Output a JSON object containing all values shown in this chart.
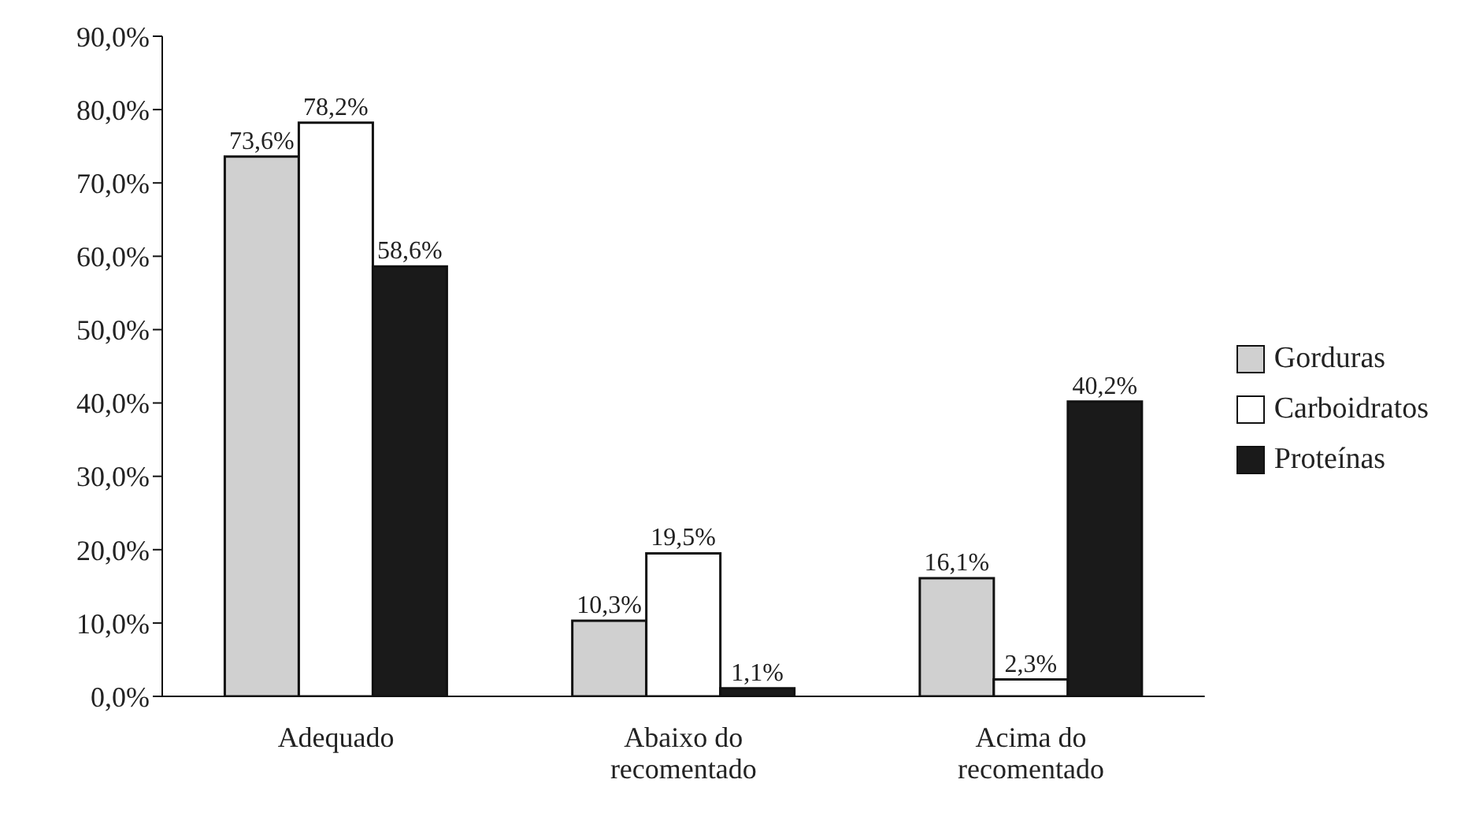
{
  "chart_data": {
    "type": "bar",
    "categories": [
      "Adequado",
      "Abaixo do recomentado",
      "Acima do recomentado"
    ],
    "series": [
      {
        "name": "Gorduras",
        "color": "#d0d0d0",
        "values": [
          73.6,
          10.3,
          16.1
        ],
        "value_labels": [
          "73,6%",
          "10,3%",
          "16,1%"
        ]
      },
      {
        "name": "Carboidratos",
        "color": "#ffffff",
        "values": [
          78.2,
          19.5,
          2.3
        ],
        "value_labels": [
          "78,2%",
          "19,5%",
          "2,3%"
        ]
      },
      {
        "name": "Proteínas",
        "color": "#1a1a1a",
        "values": [
          58.6,
          1.1,
          40.2
        ],
        "value_labels": [
          "58,6%",
          "1,1%",
          "40,2%"
        ]
      }
    ],
    "ylim": [
      0,
      90
    ],
    "yticks": [
      {
        "value": 0,
        "label": "0,0%"
      },
      {
        "value": 10,
        "label": "10,0%"
      },
      {
        "value": 20,
        "label": "20,0%"
      },
      {
        "value": 30,
        "label": "30,0%"
      },
      {
        "value": 40,
        "label": "40,0%"
      },
      {
        "value": 50,
        "label": "50,0%"
      },
      {
        "value": 60,
        "label": "60,0%"
      },
      {
        "value": 70,
        "label": "70,0%"
      },
      {
        "value": 80,
        "label": "80,0%"
      },
      {
        "value": 90,
        "label": "90,0%"
      }
    ],
    "grid": false,
    "legend": "right"
  }
}
